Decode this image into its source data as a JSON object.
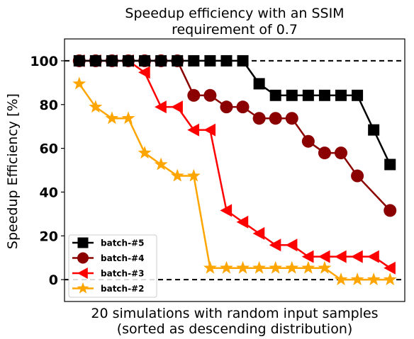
{
  "chart_data": {
    "type": "line",
    "title_lines": [
      "Speedup efficiency with an SSIM",
      "requirement of 0.7"
    ],
    "xlabel_lines": [
      "20 simulations with random input samples",
      "(sorted as descending distribution)"
    ],
    "ylabel": "Speedup Efficiency [%]",
    "x": [
      1,
      2,
      3,
      4,
      5,
      6,
      7,
      8,
      9,
      10,
      11,
      12,
      13,
      14,
      15,
      16,
      17,
      18,
      19,
      20
    ],
    "xlim": [
      0.1,
      20.9
    ],
    "ylim": [
      -10,
      110
    ],
    "yticks": [
      0,
      20,
      40,
      60,
      80,
      100
    ],
    "ytick_labels": [
      "0",
      "20",
      "40",
      "60",
      "80",
      "100"
    ],
    "xticks_shown": false,
    "reference_lines": [
      100,
      0
    ],
    "legend_position": "lower-left",
    "grid": false,
    "series": [
      {
        "name": "batch-#5",
        "color": "#000000",
        "marker": "square",
        "values": [
          100,
          100,
          100,
          100,
          100,
          100,
          100,
          100,
          100,
          100,
          100,
          89.5,
          84.2,
          84.2,
          84.2,
          84.2,
          84.2,
          84.2,
          68.4,
          52.6
        ]
      },
      {
        "name": "batch-#4",
        "color": "#8b0000",
        "marker": "circle",
        "values": [
          100,
          100,
          100,
          100,
          100,
          100,
          100,
          84.2,
          84.2,
          78.9,
          78.9,
          73.7,
          73.7,
          73.7,
          63.2,
          57.9,
          57.9,
          47.4,
          null,
          31.6
        ]
      },
      {
        "name": "batch-#3",
        "color": "#ff0000",
        "marker": "triangle-left",
        "values": [
          100,
          100,
          100,
          100,
          94.7,
          78.9,
          78.9,
          68.4,
          68.4,
          31.6,
          26.3,
          21.1,
          15.8,
          15.8,
          10.5,
          10.5,
          10.5,
          10.5,
          10.5,
          5.3
        ]
      },
      {
        "name": "batch-#2",
        "color": "#ffa500",
        "marker": "star",
        "values": [
          89.5,
          78.9,
          73.7,
          73.7,
          57.9,
          52.6,
          47.4,
          47.4,
          5.3,
          5.3,
          5.3,
          5.3,
          5.3,
          5.3,
          5.3,
          5.3,
          0,
          0,
          0,
          0
        ]
      }
    ]
  }
}
